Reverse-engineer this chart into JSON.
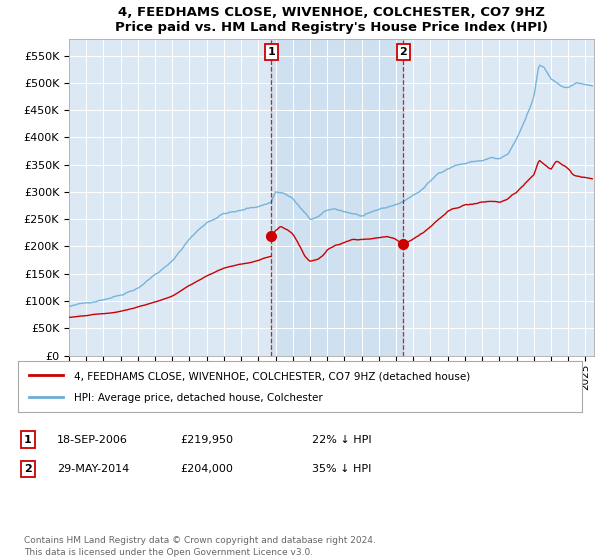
{
  "title": "4, FEEDHAMS CLOSE, WIVENHOE, COLCHESTER, CO7 9HZ",
  "subtitle": "Price paid vs. HM Land Registry's House Price Index (HPI)",
  "plot_bg_color": "#dce9f5",
  "shade_color": "#c5d9ee",
  "ylim": [
    0,
    580000
  ],
  "yticks": [
    0,
    50000,
    100000,
    150000,
    200000,
    250000,
    300000,
    350000,
    400000,
    450000,
    500000,
    550000
  ],
  "sale1_date": 2006.75,
  "sale1_price": 219950,
  "sale2_date": 2014.42,
  "sale2_price": 204000,
  "legend_line1": "4, FEEDHAMS CLOSE, WIVENHOE, COLCHESTER, CO7 9HZ (detached house)",
  "legend_line2": "HPI: Average price, detached house, Colchester",
  "ann1_date": "18-SEP-2006",
  "ann1_price": "£219,950",
  "ann1_hpi": "22% ↓ HPI",
  "ann2_date": "29-MAY-2014",
  "ann2_price": "£204,000",
  "ann2_hpi": "35% ↓ HPI",
  "footer": "Contains HM Land Registry data © Crown copyright and database right 2024.\nThis data is licensed under the Open Government Licence v3.0.",
  "hpi_color": "#6baed6",
  "price_color": "#cc0000",
  "vline_color": "#cc0000",
  "grid_color": "#ffffff",
  "xmin": 1995.0,
  "xmax": 2025.5
}
